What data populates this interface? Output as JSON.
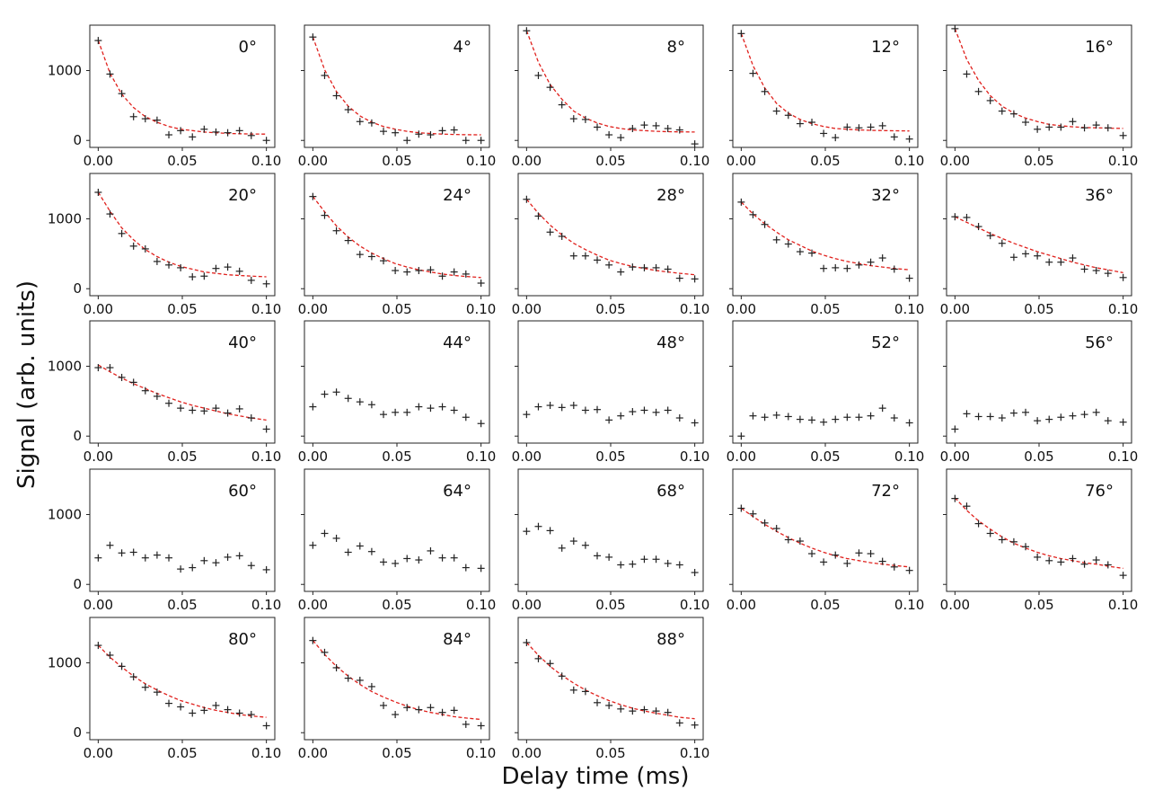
{
  "chart_data": {
    "type": "scatter",
    "layout": "grid 5x5",
    "xlabel": "Delay time (ms)",
    "ylabel": "Signal (arb. units)",
    "xlim": [
      -0.005,
      0.105
    ],
    "ylim": [
      -100,
      1650
    ],
    "xticks": [
      0.0,
      0.05,
      0.1
    ],
    "xtick_labels": [
      "0.00",
      "0.05",
      "0.10"
    ],
    "yticks": [
      0,
      1000
    ],
    "ytick_labels": [
      "0",
      "1000"
    ],
    "x": [
      0.0,
      0.007,
      0.014,
      0.021,
      0.028,
      0.035,
      0.042,
      0.049,
      0.056,
      0.063,
      0.07,
      0.077,
      0.084,
      0.091,
      0.1
    ],
    "panels": [
      {
        "label": "0°",
        "y": [
          1430,
          950,
          670,
          340,
          310,
          290,
          80,
          140,
          50,
          160,
          120,
          110,
          140,
          70,
          0
        ],
        "fit": [
          1430,
          960,
          660,
          470,
          340,
          260,
          200,
          160,
          140,
          120,
          110,
          100,
          95,
          92,
          90
        ]
      },
      {
        "label": "4°",
        "y": [
          1480,
          930,
          640,
          440,
          270,
          250,
          130,
          110,
          0,
          90,
          80,
          140,
          150,
          0,
          0
        ],
        "fit": [
          1480,
          1010,
          700,
          490,
          350,
          260,
          200,
          160,
          130,
          110,
          100,
          90,
          85,
          82,
          80
        ]
      },
      {
        "label": "8°",
        "y": [
          1570,
          930,
          760,
          510,
          310,
          300,
          190,
          80,
          40,
          170,
          220,
          210,
          170,
          150,
          -50
        ],
        "fit": [
          1570,
          1120,
          800,
          590,
          420,
          320,
          250,
          200,
          170,
          150,
          140,
          130,
          125,
          122,
          120
        ]
      },
      {
        "label": "12°",
        "y": [
          1530,
          960,
          700,
          420,
          360,
          240,
          260,
          100,
          40,
          190,
          180,
          190,
          210,
          50,
          20
        ],
        "fit": [
          1530,
          1070,
          750,
          530,
          390,
          300,
          240,
          200,
          170,
          160,
          150,
          145,
          140,
          138,
          135
        ]
      },
      {
        "label": "16°",
        "y": [
          1600,
          950,
          700,
          570,
          420,
          380,
          260,
          160,
          190,
          190,
          270,
          180,
          220,
          180,
          70
        ],
        "fit": [
          1600,
          1160,
          860,
          640,
          490,
          390,
          320,
          270,
          230,
          210,
          195,
          185,
          180,
          176,
          172
        ]
      },
      {
        "label": "20°",
        "y": [
          1380,
          1070,
          790,
          610,
          570,
          390,
          340,
          300,
          170,
          180,
          290,
          310,
          250,
          120,
          70
        ],
        "fit": [
          1380,
          1110,
          870,
          700,
          560,
          460,
          380,
          320,
          280,
          240,
          220,
          200,
          190,
          180,
          170
        ]
      },
      {
        "label": "24°",
        "y": [
          1320,
          1050,
          830,
          690,
          490,
          460,
          400,
          260,
          240,
          260,
          270,
          180,
          240,
          210,
          80
        ],
        "fit": [
          1320,
          1100,
          900,
          740,
          610,
          510,
          430,
          360,
          310,
          270,
          240,
          210,
          190,
          175,
          160
        ]
      },
      {
        "label": "28°",
        "y": [
          1280,
          1040,
          810,
          750,
          470,
          470,
          410,
          340,
          240,
          310,
          300,
          300,
          280,
          150,
          140
        ],
        "fit": [
          1280,
          1080,
          910,
          770,
          650,
          560,
          480,
          410,
          360,
          320,
          290,
          260,
          240,
          220,
          200
        ]
      },
      {
        "label": "32°",
        "y": [
          1240,
          1060,
          920,
          700,
          640,
          530,
          510,
          290,
          300,
          290,
          340,
          380,
          440,
          280,
          150
        ],
        "fit": [
          1240,
          1070,
          930,
          810,
          700,
          620,
          540,
          480,
          430,
          390,
          360,
          330,
          310,
          290,
          270
        ]
      },
      {
        "label": "36°",
        "y": [
          1030,
          1020,
          890,
          760,
          650,
          450,
          500,
          470,
          380,
          380,
          440,
          280,
          260,
          220,
          160
        ],
        "fit": [
          1030,
          950,
          870,
          790,
          720,
          650,
          590,
          530,
          480,
          430,
          380,
          340,
          300,
          270,
          230
        ]
      },
      {
        "label": "40°",
        "y": [
          980,
          980,
          840,
          770,
          650,
          570,
          470,
          400,
          370,
          360,
          400,
          330,
          390,
          260,
          100
        ],
        "fit": [
          1020,
          920,
          830,
          750,
          680,
          610,
          550,
          490,
          440,
          400,
          360,
          320,
          290,
          260,
          230
        ]
      },
      {
        "label": "44°",
        "y": [
          420,
          600,
          630,
          540,
          490,
          450,
          310,
          340,
          340,
          420,
          400,
          420,
          370,
          270,
          180
        ],
        "fit": null
      },
      {
        "label": "48°",
        "y": [
          310,
          420,
          440,
          410,
          440,
          370,
          380,
          230,
          290,
          350,
          370,
          340,
          370,
          260,
          190
        ],
        "fit": null
      },
      {
        "label": "52°",
        "y": [
          0,
          290,
          270,
          300,
          280,
          240,
          230,
          200,
          240,
          270,
          270,
          290,
          400,
          260,
          190
        ],
        "fit": null
      },
      {
        "label": "56°",
        "y": [
          100,
          320,
          280,
          280,
          260,
          330,
          340,
          220,
          240,
          270,
          290,
          310,
          340,
          220,
          200
        ],
        "fit": null
      },
      {
        "label": "60°",
        "y": [
          380,
          560,
          450,
          460,
          380,
          420,
          380,
          220,
          240,
          340,
          310,
          390,
          410,
          270,
          210
        ],
        "fit": null
      },
      {
        "label": "64°",
        "y": [
          560,
          730,
          660,
          460,
          550,
          470,
          320,
          300,
          370,
          350,
          480,
          380,
          380,
          240,
          230
        ],
        "fit": null
      },
      {
        "label": "68°",
        "y": [
          760,
          830,
          770,
          520,
          620,
          560,
          410,
          390,
          280,
          290,
          360,
          360,
          300,
          280,
          170
        ],
        "fit": null
      },
      {
        "label": "72°",
        "y": [
          1090,
          1010,
          880,
          800,
          640,
          620,
          440,
          320,
          420,
          300,
          450,
          440,
          330,
          250,
          200
        ],
        "fit": [
          1090,
          970,
          860,
          760,
          670,
          590,
          520,
          460,
          410,
          370,
          340,
          310,
          290,
          270,
          250
        ]
      },
      {
        "label": "76°",
        "y": [
          1230,
          1120,
          870,
          730,
          640,
          610,
          540,
          390,
          340,
          320,
          370,
          290,
          350,
          280,
          130
        ],
        "fit": [
          1240,
          1060,
          910,
          790,
          680,
          590,
          520,
          460,
          410,
          370,
          340,
          310,
          290,
          260,
          230
        ]
      },
      {
        "label": "80°",
        "y": [
          1250,
          1110,
          950,
          800,
          650,
          580,
          420,
          370,
          280,
          320,
          390,
          330,
          280,
          260,
          100
        ],
        "fit": [
          1250,
          1080,
          940,
          810,
          700,
          610,
          530,
          460,
          410,
          360,
          320,
          290,
          260,
          240,
          220
        ]
      },
      {
        "label": "84°",
        "y": [
          1320,
          1150,
          930,
          780,
          750,
          660,
          390,
          260,
          360,
          330,
          360,
          290,
          320,
          120,
          100
        ],
        "fit": [
          1320,
          1120,
          950,
          810,
          690,
          590,
          510,
          440,
          380,
          330,
          290,
          260,
          230,
          210,
          190
        ]
      },
      {
        "label": "88°",
        "y": [
          1290,
          1060,
          990,
          810,
          610,
          590,
          430,
          390,
          340,
          310,
          330,
          310,
          290,
          140,
          110
        ],
        "fit": [
          1290,
          1110,
          950,
          820,
          710,
          610,
          530,
          460,
          400,
          350,
          310,
          280,
          250,
          220,
          200
        ]
      }
    ]
  }
}
